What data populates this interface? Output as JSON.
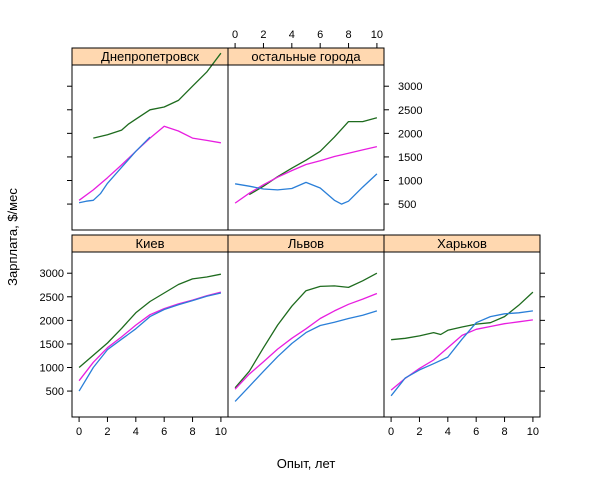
{
  "chart_data": {
    "type": "line",
    "xlabel": "Опыт, лет",
    "ylabel": "Зарплата, $/мес",
    "xlim": [
      -0.5,
      10.5
    ],
    "ylim": [
      -50,
      3450
    ],
    "x_ticks": [
      0,
      2,
      4,
      6,
      8,
      10
    ],
    "y_ticks": [
      500,
      1000,
      1500,
      2000,
      2500,
      3000
    ],
    "grid": false,
    "strip_color": "#ffd8b0",
    "series_colors": [
      "#1e6b1e",
      "#e81ee0",
      "#2a7fd8"
    ],
    "panels": [
      {
        "name": "Днепропетровск",
        "series": [
          {
            "x": [
              1,
              2,
              3,
              3.5,
              4,
              5,
              6,
              7,
              8,
              9,
              10
            ],
            "values": [
              1900,
              1970,
              2070,
              2200,
              2300,
              2500,
              2560,
              2700,
              3000,
              3300,
              3700
            ]
          },
          {
            "x": [
              0,
              1,
              2,
              3,
              4,
              5,
              6,
              7,
              8,
              9,
              10
            ],
            "values": [
              580,
              800,
              1060,
              1330,
              1620,
              1900,
              2150,
              2050,
              1900,
              1850,
              1800
            ]
          },
          {
            "x": [
              0,
              0.5,
              1,
              1.5,
              2,
              3,
              4,
              5
            ],
            "values": [
              530,
              560,
              580,
              720,
              940,
              1280,
              1620,
              1920
            ]
          }
        ]
      },
      {
        "name": "остальные города",
        "series": [
          {
            "x": [
              1,
              2,
              3,
              4,
              5,
              6,
              7,
              8,
              9,
              10
            ],
            "values": [
              700,
              880,
              1080,
              1260,
              1430,
              1620,
              1920,
              2250,
              2250,
              2330
            ]
          },
          {
            "x": [
              0,
              1,
              2,
              3,
              4,
              5,
              6,
              7,
              8,
              9,
              10
            ],
            "values": [
              520,
              730,
              910,
              1070,
              1210,
              1340,
              1420,
              1510,
              1580,
              1650,
              1720
            ]
          },
          {
            "x": [
              0,
              1,
              2,
              3,
              4,
              5,
              6,
              7,
              7.5,
              8,
              9,
              10
            ],
            "values": [
              930,
              880,
              820,
              800,
              830,
              960,
              840,
              580,
              500,
              560,
              860,
              1140
            ]
          }
        ]
      },
      {
        "name": "Киев",
        "series": [
          {
            "x": [
              0,
              1,
              2,
              3,
              4,
              5,
              6,
              7,
              8,
              9,
              10
            ],
            "values": [
              1000,
              1260,
              1520,
              1830,
              2160,
              2400,
              2580,
              2760,
              2880,
              2920,
              2980
            ]
          },
          {
            "x": [
              0,
              1,
              2,
              3,
              4,
              5,
              6,
              7,
              8,
              9,
              10
            ],
            "values": [
              720,
              1110,
              1420,
              1650,
              1900,
              2120,
              2250,
              2350,
              2430,
              2520,
              2600
            ]
          },
          {
            "x": [
              0,
              1,
              2,
              3,
              4,
              5,
              6,
              7,
              8,
              9,
              10
            ],
            "values": [
              500,
              1000,
              1380,
              1600,
              1820,
              2080,
              2230,
              2330,
              2420,
              2510,
              2580
            ]
          }
        ]
      },
      {
        "name": "Львов",
        "series": [
          {
            "x": [
              0,
              1,
              2,
              3,
              4,
              5,
              6,
              7,
              8,
              9,
              10
            ],
            "values": [
              570,
              920,
              1420,
              1900,
              2300,
              2630,
              2720,
              2730,
              2700,
              2840,
              3000
            ]
          },
          {
            "x": [
              0,
              1,
              2,
              3,
              4,
              5,
              6,
              7,
              8,
              9,
              10
            ],
            "values": [
              540,
              860,
              1120,
              1390,
              1620,
              1820,
              2040,
              2200,
              2340,
              2450,
              2570
            ]
          },
          {
            "x": [
              0,
              1,
              2,
              3,
              4,
              5,
              6,
              7,
              8,
              9,
              10
            ],
            "values": [
              280,
              600,
              920,
              1230,
              1510,
              1740,
              1890,
              1960,
              2040,
              2110,
              2200
            ]
          }
        ]
      },
      {
        "name": "Харьков",
        "series": [
          {
            "x": [
              0,
              1,
              2,
              3,
              3.5,
              4,
              5,
              6,
              7,
              8,
              9,
              10
            ],
            "values": [
              1590,
              1620,
              1670,
              1740,
              1700,
              1790,
              1860,
              1920,
              1950,
              2080,
              2320,
              2600
            ]
          },
          {
            "x": [
              0,
              1,
              2,
              3,
              4,
              5,
              6,
              7,
              8,
              9,
              10
            ],
            "values": [
              520,
              770,
              980,
              1160,
              1420,
              1680,
              1810,
              1870,
              1930,
              1970,
              2010
            ]
          },
          {
            "x": [
              0,
              1,
              2,
              3,
              4,
              5,
              6,
              7,
              8,
              9,
              10
            ],
            "values": [
              400,
              780,
              950,
              1080,
              1220,
              1600,
              1950,
              2080,
              2140,
              2160,
              2200
            ]
          }
        ]
      }
    ]
  }
}
